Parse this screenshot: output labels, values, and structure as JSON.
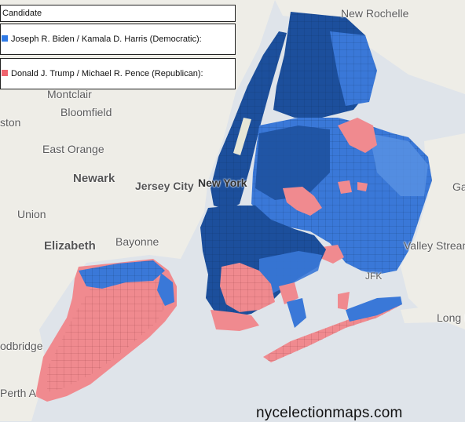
{
  "legend": {
    "title": "Candidate",
    "entries": [
      {
        "label": "Joseph R. Biden / Kamala D. Harris (Democratic):",
        "color": "#2f7ae6"
      },
      {
        "label": "Donald J. Trump / Michael R. Pence (Republican):",
        "color": "#f0656f"
      }
    ]
  },
  "places": {
    "new_rochelle": "New Rochelle",
    "montclair": "Montclair",
    "bloomfield": "Bloomfield",
    "ston": "ston",
    "east_orange": "East Orange",
    "newark": "Newark",
    "jersey_city": "Jersey City",
    "new_york": "New York",
    "union": "Union",
    "elizabeth": "Elizabeth",
    "bayonne": "Bayonne",
    "valley_stream": "Valley Stream",
    "jfk": "JFK",
    "long_beach": "Long B",
    "ga": "Ga",
    "odbridge": "odbridge",
    "perth_amboy": "Perth A"
  },
  "watermark": "nycelectionmaps.com",
  "colors": {
    "water": "#dfe4ea",
    "land": "#eeede7",
    "dem_dark": "#1c4f9c",
    "dem": "#3a78d8",
    "dem_light": "#7aa8ec",
    "rep": "#f08a8f"
  }
}
